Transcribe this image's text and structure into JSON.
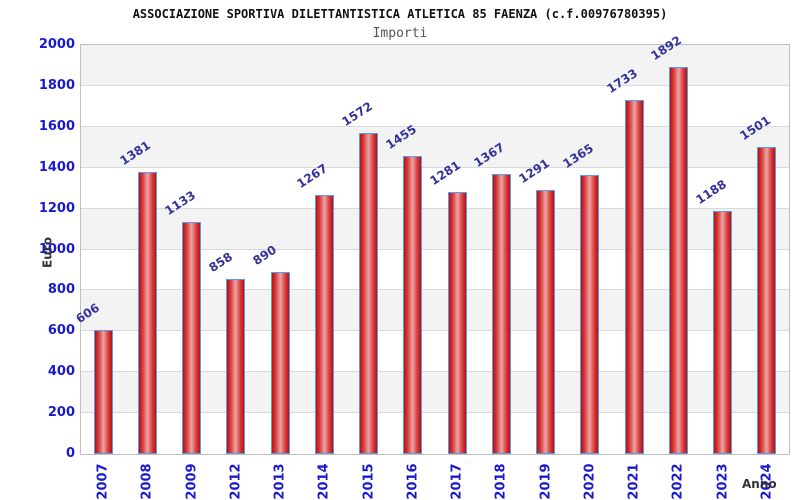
{
  "header": {
    "title": "ASSOCIAZIONE SPORTIVA DILETTANTISTICA ATLETICA 85 FAENZA (c.f.00976780395)",
    "subtitle": "Importi"
  },
  "chart_data": {
    "type": "bar",
    "title": "ASSOCIAZIONE SPORTIVA DILETTANTISTICA ATLETICA 85 FAENZA (c.f.00976780395)",
    "subtitle": "Importi",
    "xlabel": "Anno",
    "ylabel": "Euro",
    "categories": [
      "2007",
      "2008",
      "2009",
      "2012",
      "2013",
      "2014",
      "2015",
      "2016",
      "2017",
      "2018",
      "2019",
      "2020",
      "2021",
      "2022",
      "2023",
      "2024"
    ],
    "values": [
      606,
      1381,
      1133,
      858,
      890,
      1267,
      1572,
      1455,
      1281,
      1367,
      1291,
      1365,
      1733,
      1892,
      1188,
      1501
    ],
    "ylim": [
      0,
      2000
    ],
    "ytick_step": 200,
    "grid": true,
    "legend_position": "none",
    "bar_value_labels_shown": true,
    "colors": {
      "bar_fill": "#d21717",
      "bar_center_highlight": "#eda3a3",
      "bar_border": "#55a0ee",
      "tick_label": "#1a1acd",
      "value_label": "#333399",
      "axis_title": "#333333",
      "band_gray": "#f3f3f3",
      "gridline": "#d9d9d9",
      "plot_border": "#bfbfbf",
      "subtitle": "#555555"
    }
  }
}
